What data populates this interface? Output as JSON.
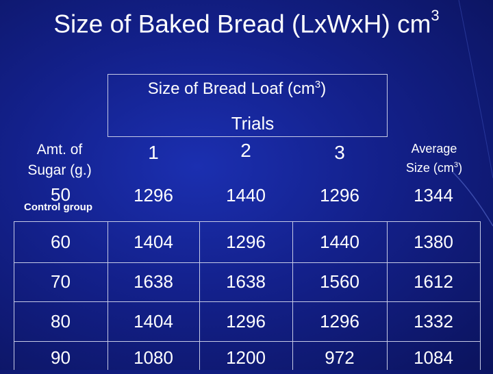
{
  "title": {
    "text": "Size of Baked Bread (LxWxH) cm",
    "sup": "3"
  },
  "group_header": {
    "text": "Size of Bread Loaf (cm",
    "sup": "3",
    "close": ")"
  },
  "trials_label": "Trials",
  "sugar_header": {
    "line1": "Amt. of",
    "line2": "Sugar (g.)"
  },
  "trial_headers": [
    "1",
    "2",
    "3"
  ],
  "average_header": {
    "line1": "Average",
    "line2": "Size (cm",
    "sup": "3",
    "close": ")"
  },
  "control_note": "Control group",
  "rows": [
    {
      "sugar": "50",
      "t1": "1296",
      "t2": "1440",
      "t3": "1296",
      "avg": "1344"
    },
    {
      "sugar": "60",
      "t1": "1404",
      "t2": "1296",
      "t3": "1440",
      "avg": "1380"
    },
    {
      "sugar": "70",
      "t1": "1638",
      "t2": "1638",
      "t3": "1560",
      "avg": "1612"
    },
    {
      "sugar": "80",
      "t1": "1404",
      "t2": "1296",
      "t3": "1296",
      "avg": "1332"
    },
    {
      "sugar": "90",
      "t1": "1080",
      "t2": "1200",
      "t3": "972",
      "avg": "1084"
    }
  ]
}
